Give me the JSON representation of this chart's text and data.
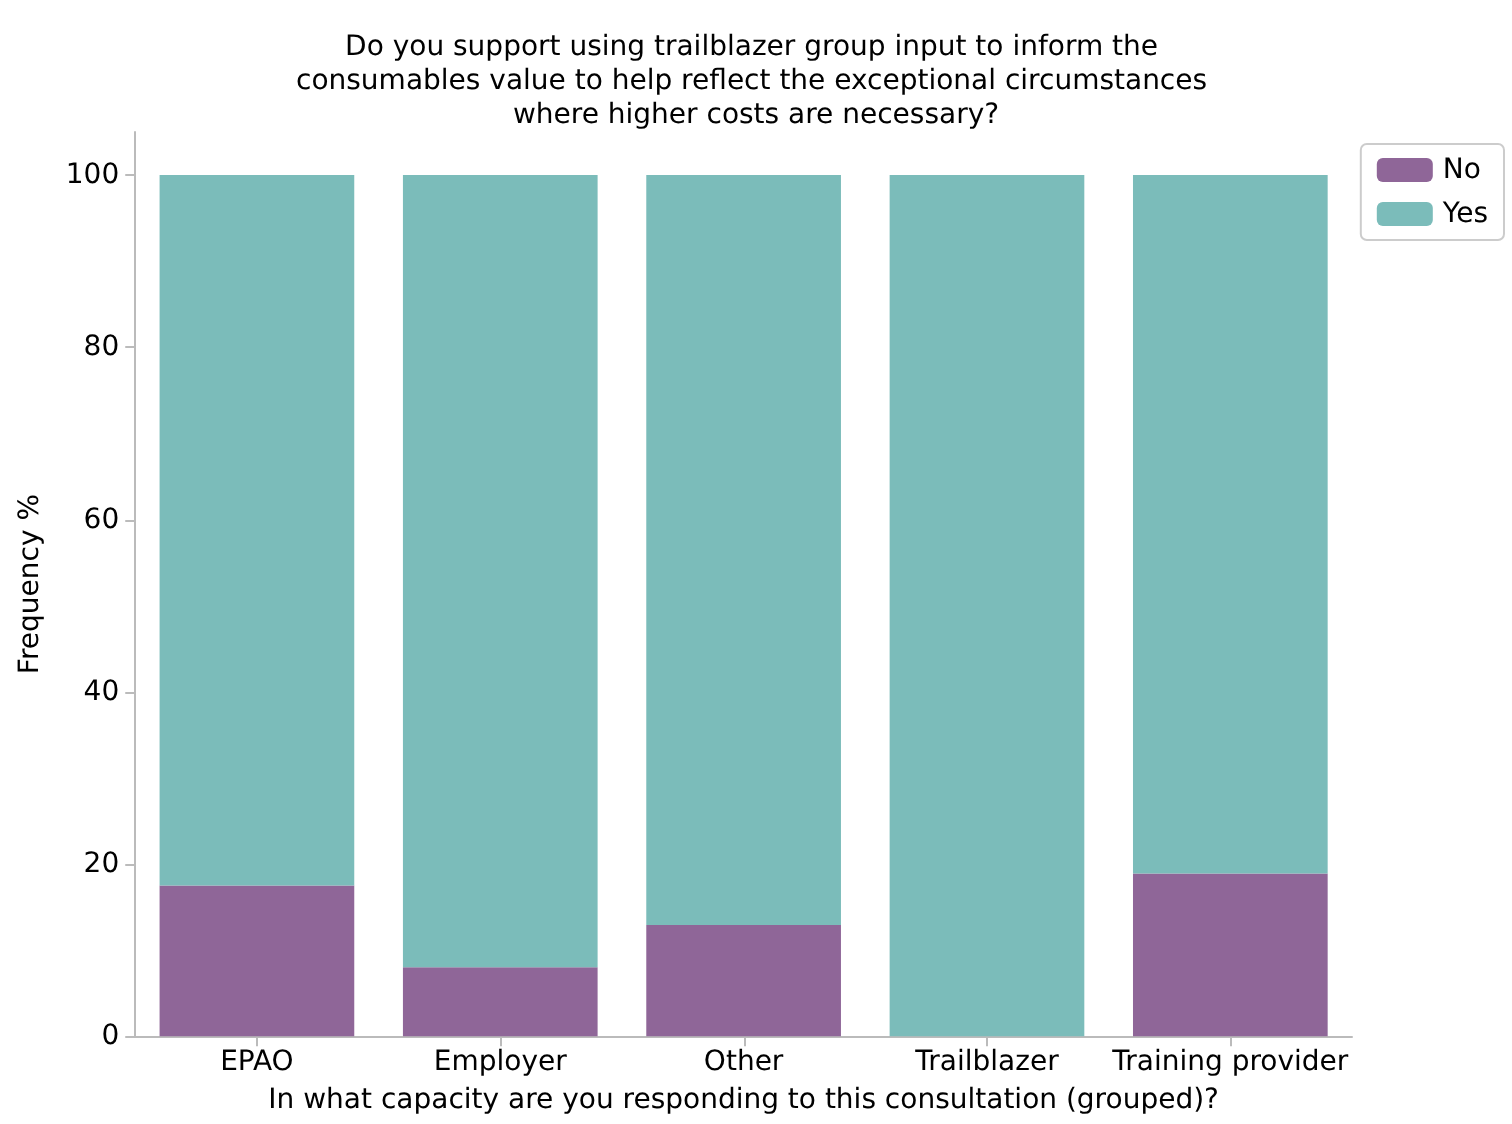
{
  "chart_data": {
    "type": "bar",
    "title": "Do you support using trailblazer group input to inform the consumables value to help reflect the exceptional circumstances where higher costs are necessary?",
    "xlabel": "In what capacity are you responding to this consultation (grouped)?",
    "ylabel": "Frequency %",
    "categories": [
      "EPAO",
      "Employer",
      "Other",
      "Trailblazer",
      "Training provider"
    ],
    "stacked": true,
    "series": [
      {
        "name": "No",
        "color": "#8f6698",
        "values": [
          17.5,
          8.0,
          12.9,
          0,
          18.9
        ]
      },
      {
        "name": "Yes",
        "color": "#7bbcba",
        "values": [
          82.5,
          92.0,
          87.1,
          100,
          81.1
        ]
      }
    ],
    "ylim": [
      0,
      105
    ],
    "yticks": [
      0,
      20,
      40,
      60,
      80,
      100
    ],
    "grid": false,
    "legend": "top right"
  }
}
